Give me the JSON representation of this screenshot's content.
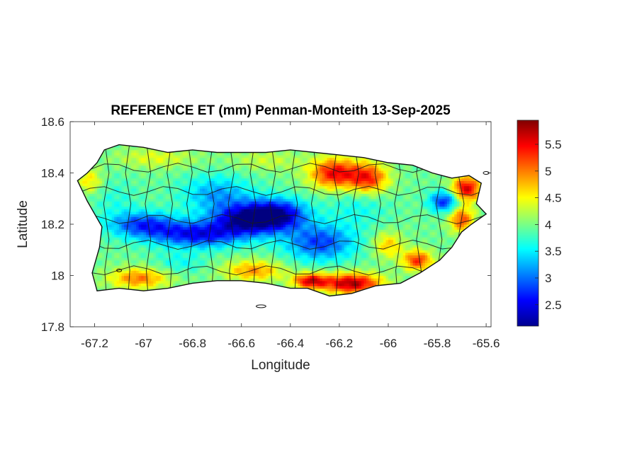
{
  "chart_data": {
    "type": "heatmap",
    "title": "REFERENCE ET (mm) Penman-Monteith 13-Sep-2025",
    "xlabel": "Longitude",
    "ylabel": "Latitude",
    "xlim": [
      -67.3,
      -65.58
    ],
    "ylim": [
      17.8,
      18.6
    ],
    "xticks": [
      -67.2,
      -67,
      -66.8,
      -66.6,
      -66.4,
      -66.2,
      -66,
      -65.8,
      -65.6
    ],
    "xtick_labels": [
      "-67.2",
      "-67",
      "-66.8",
      "-66.6",
      "-66.4",
      "-66.2",
      "-66",
      "-65.8",
      "-65.6"
    ],
    "yticks": [
      17.8,
      18,
      18.2,
      18.4,
      18.6
    ],
    "ytick_labels": [
      "17.8",
      "18",
      "18.2",
      "18.4",
      "18.6"
    ],
    "colorbar": {
      "range": [
        2.1,
        5.95
      ],
      "ticks": [
        2.5,
        3,
        3.5,
        4,
        4.5,
        5,
        5.5
      ],
      "tick_labels": [
        "2.5",
        "3",
        "3.5",
        "4",
        "4.5",
        "5",
        "5.5"
      ],
      "colormap": "jet"
    },
    "island_outline": [
      [
        -67.27,
        18.37
      ],
      [
        -67.23,
        18.4
      ],
      [
        -67.19,
        18.44
      ],
      [
        -67.16,
        18.49
      ],
      [
        -67.1,
        18.51
      ],
      [
        -67.0,
        18.5
      ],
      [
        -66.9,
        18.48
      ],
      [
        -66.8,
        18.49
      ],
      [
        -66.7,
        18.48
      ],
      [
        -66.6,
        18.48
      ],
      [
        -66.5,
        18.48
      ],
      [
        -66.4,
        18.49
      ],
      [
        -66.3,
        18.48
      ],
      [
        -66.2,
        18.47
      ],
      [
        -66.1,
        18.46
      ],
      [
        -66.0,
        18.44
      ],
      [
        -65.9,
        18.43
      ],
      [
        -65.82,
        18.4
      ],
      [
        -65.74,
        18.38
      ],
      [
        -65.67,
        18.39
      ],
      [
        -65.62,
        18.36
      ],
      [
        -65.64,
        18.28
      ],
      [
        -65.6,
        18.24
      ],
      [
        -65.66,
        18.2
      ],
      [
        -65.7,
        18.17
      ],
      [
        -65.74,
        18.11
      ],
      [
        -65.79,
        18.06
      ],
      [
        -65.87,
        18.01
      ],
      [
        -65.95,
        17.97
      ],
      [
        -66.05,
        17.96
      ],
      [
        -66.15,
        17.93
      ],
      [
        -66.24,
        17.92
      ],
      [
        -66.33,
        17.95
      ],
      [
        -66.4,
        17.95
      ],
      [
        -66.5,
        17.97
      ],
      [
        -66.6,
        17.98
      ],
      [
        -66.7,
        17.98
      ],
      [
        -66.8,
        17.97
      ],
      [
        -66.9,
        17.95
      ],
      [
        -67.0,
        17.94
      ],
      [
        -67.1,
        17.95
      ],
      [
        -67.19,
        17.94
      ],
      [
        -67.21,
        18.01
      ],
      [
        -67.18,
        18.11
      ],
      [
        -67.17,
        18.19
      ],
      [
        -67.23,
        18.29
      ],
      [
        -67.27,
        18.37
      ]
    ],
    "value_field": [
      {
        "lon": -66.58,
        "lat": 18.22,
        "value": 2.3,
        "sx": 0.14,
        "sy": 0.06
      },
      {
        "lon": -66.45,
        "lat": 18.24,
        "value": 2.5,
        "sx": 0.12,
        "sy": 0.06
      },
      {
        "lon": -66.78,
        "lat": 18.16,
        "value": 2.6,
        "sx": 0.18,
        "sy": 0.05
      },
      {
        "lon": -67.0,
        "lat": 18.2,
        "value": 2.8,
        "sx": 0.14,
        "sy": 0.05
      },
      {
        "lon": -66.28,
        "lat": 18.13,
        "value": 2.8,
        "sx": 0.14,
        "sy": 0.07
      },
      {
        "lon": -65.77,
        "lat": 18.29,
        "value": 2.7,
        "sx": 0.06,
        "sy": 0.04
      },
      {
        "lon": -66.7,
        "lat": 18.32,
        "value": 3.2,
        "sx": 0.14,
        "sy": 0.07
      },
      {
        "lon": -66.12,
        "lat": 18.27,
        "value": 3.6,
        "sx": 0.12,
        "sy": 0.08
      },
      {
        "lon": -67.12,
        "lat": 18.3,
        "value": 3.7,
        "sx": 0.1,
        "sy": 0.08
      },
      {
        "lon": -66.85,
        "lat": 18.05,
        "value": 3.6,
        "sx": 0.1,
        "sy": 0.04
      },
      {
        "lon": -66.22,
        "lat": 18.4,
        "value": 5.5,
        "sx": 0.1,
        "sy": 0.06
      },
      {
        "lon": -66.08,
        "lat": 18.38,
        "value": 5.3,
        "sx": 0.08,
        "sy": 0.06
      },
      {
        "lon": -65.68,
        "lat": 18.34,
        "value": 5.6,
        "sx": 0.06,
        "sy": 0.05
      },
      {
        "lon": -65.7,
        "lat": 18.22,
        "value": 5.2,
        "sx": 0.05,
        "sy": 0.05
      },
      {
        "lon": -66.15,
        "lat": 17.97,
        "value": 5.8,
        "sx": 0.12,
        "sy": 0.04
      },
      {
        "lon": -66.32,
        "lat": 17.98,
        "value": 5.5,
        "sx": 0.07,
        "sy": 0.03
      },
      {
        "lon": -65.88,
        "lat": 18.06,
        "value": 5.3,
        "sx": 0.06,
        "sy": 0.04
      },
      {
        "lon": -67.02,
        "lat": 17.99,
        "value": 5.0,
        "sx": 0.12,
        "sy": 0.04
      },
      {
        "lon": -66.55,
        "lat": 18.02,
        "value": 4.9,
        "sx": 0.12,
        "sy": 0.04
      },
      {
        "lon": -66.0,
        "lat": 18.12,
        "value": 4.7,
        "sx": 0.06,
        "sy": 0.05
      },
      {
        "lon": -66.95,
        "lat": 18.46,
        "value": 4.4,
        "sx": 0.16,
        "sy": 0.04
      },
      {
        "lon": -66.5,
        "lat": 18.45,
        "value": 4.3,
        "sx": 0.14,
        "sy": 0.04
      },
      {
        "lon": -67.22,
        "lat": 18.37,
        "value": 4.6,
        "sx": 0.05,
        "sy": 0.05
      }
    ],
    "base_value": 3.95
  }
}
